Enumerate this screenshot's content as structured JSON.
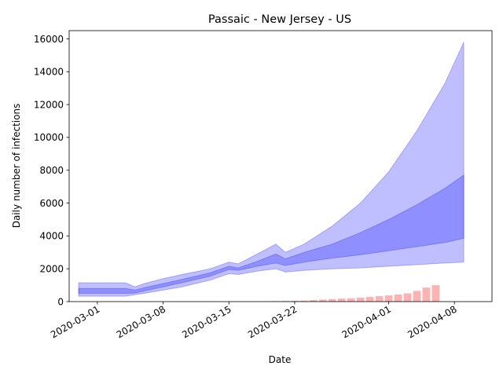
{
  "chart_data": {
    "type": "area",
    "title": "Passaic - New Jersey - US",
    "xlabel": "Date",
    "ylabel": "Daily number of infections",
    "x_ticks": [
      "2020-03-01",
      "2020-03-08",
      "2020-03-15",
      "2020-03-22",
      "2020-04-01",
      "2020-04-08"
    ],
    "y_ticks": [
      0,
      2000,
      4000,
      6000,
      8000,
      10000,
      12000,
      14000,
      16000
    ],
    "xlim": [
      "2020-02-27",
      "2020-04-12"
    ],
    "ylim": [
      0,
      16500
    ],
    "grid": false,
    "legend": "none",
    "colors": {
      "band": "#0000ff",
      "bars": "#ff6666"
    },
    "bands": [
      {
        "kind": "outer",
        "x": [
          "2020-02-28",
          "2020-03-04",
          "2020-03-05",
          "2020-03-06",
          "2020-03-08",
          "2020-03-10",
          "2020-03-13",
          "2020-03-15",
          "2020-03-16",
          "2020-03-18",
          "2020-03-20",
          "2020-03-21",
          "2020-03-23",
          "2020-03-26",
          "2020-03-29",
          "2020-04-01",
          "2020-04-04",
          "2020-04-07",
          "2020-04-09"
        ],
        "lower": [
          330,
          330,
          420,
          500,
          700,
          900,
          1300,
          1700,
          1650,
          1850,
          2000,
          1800,
          1900,
          2000,
          2050,
          2150,
          2250,
          2350,
          2400
        ],
        "upper": [
          1150,
          1150,
          900,
          1100,
          1400,
          1650,
          2000,
          2400,
          2300,
          2900,
          3500,
          3000,
          3500,
          4600,
          6000,
          7900,
          10400,
          13300,
          15800
        ]
      },
      {
        "kind": "inner",
        "x": [
          "2020-02-28",
          "2020-03-04",
          "2020-03-05",
          "2020-03-06",
          "2020-03-08",
          "2020-03-10",
          "2020-03-13",
          "2020-03-15",
          "2020-03-16",
          "2020-03-18",
          "2020-03-20",
          "2020-03-21",
          "2020-03-23",
          "2020-03-26",
          "2020-03-29",
          "2020-04-01",
          "2020-04-04",
          "2020-04-07",
          "2020-04-09"
        ],
        "lower": [
          500,
          500,
          520,
          650,
          900,
          1150,
          1550,
          1950,
          1900,
          2150,
          2350,
          2200,
          2400,
          2650,
          2850,
          3100,
          3350,
          3600,
          3850
        ],
        "upper": [
          800,
          800,
          700,
          850,
          1100,
          1350,
          1750,
          2150,
          2050,
          2450,
          2900,
          2600,
          3000,
          3500,
          4200,
          5000,
          5900,
          6900,
          7700
        ]
      }
    ],
    "bars": {
      "x": [
        "2020-03-19",
        "2020-03-20",
        "2020-03-21",
        "2020-03-22",
        "2020-03-23",
        "2020-03-24",
        "2020-03-25",
        "2020-03-26",
        "2020-03-27",
        "2020-03-28",
        "2020-03-29",
        "2020-03-30",
        "2020-03-31",
        "2020-04-01",
        "2020-04-02",
        "2020-04-03",
        "2020-04-04",
        "2020-04-05",
        "2020-04-06"
      ],
      "values": [
        20,
        30,
        40,
        50,
        60,
        90,
        120,
        150,
        180,
        200,
        240,
        280,
        330,
        380,
        430,
        500,
        650,
        850,
        1000
      ]
    }
  }
}
